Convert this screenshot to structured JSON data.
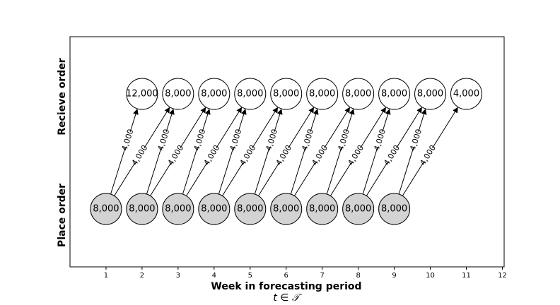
{
  "axes": {
    "xlabel": "Week in forecasting period",
    "xsublabel": "t ∈ 𝒯",
    "xticks": [
      "1",
      "2",
      "3",
      "4",
      "5",
      "6",
      "7",
      "8",
      "9",
      "10",
      "11",
      "12"
    ],
    "xlim": [
      0,
      12.05
    ],
    "row_labels": {
      "top": "Recieve order",
      "bottom": "Place order"
    }
  },
  "colors": {
    "place_fill": "#d3d3d3",
    "receive_fill": "#ffffff",
    "stroke": "#000000"
  },
  "place_nodes": [
    {
      "week": 1,
      "label": "8,000"
    },
    {
      "week": 2,
      "label": "8,000"
    },
    {
      "week": 3,
      "label": "8,000"
    },
    {
      "week": 4,
      "label": "8,000"
    },
    {
      "week": 5,
      "label": "8,000"
    },
    {
      "week": 6,
      "label": "8,000"
    },
    {
      "week": 7,
      "label": "8,000"
    },
    {
      "week": 8,
      "label": "8,000"
    },
    {
      "week": 9,
      "label": "8,000"
    }
  ],
  "receive_nodes": [
    {
      "week": 2,
      "label": "12,000"
    },
    {
      "week": 3,
      "label": "8,000"
    },
    {
      "week": 4,
      "label": "8,000"
    },
    {
      "week": 5,
      "label": "8,000"
    },
    {
      "week": 6,
      "label": "8,000"
    },
    {
      "week": 7,
      "label": "8,000"
    },
    {
      "week": 8,
      "label": "8,000"
    },
    {
      "week": 9,
      "label": "8,000"
    },
    {
      "week": 10,
      "label": "8,000"
    },
    {
      "week": 11,
      "label": "4,000"
    }
  ],
  "flows": [
    {
      "from": 1,
      "to": 2,
      "label": "4,000"
    },
    {
      "from": 1,
      "to": 3,
      "label": "4,000"
    },
    {
      "from": 2,
      "to": 3,
      "label": "4,000"
    },
    {
      "from": 2,
      "to": 4,
      "label": "4,000"
    },
    {
      "from": 3,
      "to": 4,
      "label": "4,000"
    },
    {
      "from": 3,
      "to": 5,
      "label": "4,000"
    },
    {
      "from": 4,
      "to": 5,
      "label": "4,000"
    },
    {
      "from": 4,
      "to": 6,
      "label": "4,000"
    },
    {
      "from": 5,
      "to": 6,
      "label": "4,000"
    },
    {
      "from": 5,
      "to": 7,
      "label": "4,000"
    },
    {
      "from": 6,
      "to": 7,
      "label": "4,000"
    },
    {
      "from": 6,
      "to": 8,
      "label": "4,000"
    },
    {
      "from": 7,
      "to": 8,
      "label": "4,000"
    },
    {
      "from": 7,
      "to": 9,
      "label": "4,000"
    },
    {
      "from": 8,
      "to": 9,
      "label": "4,000"
    },
    {
      "from": 8,
      "to": 10,
      "label": "4,000"
    },
    {
      "from": 9,
      "to": 10,
      "label": "4,000"
    },
    {
      "from": 9,
      "to": 11,
      "label": "4,000"
    }
  ]
}
